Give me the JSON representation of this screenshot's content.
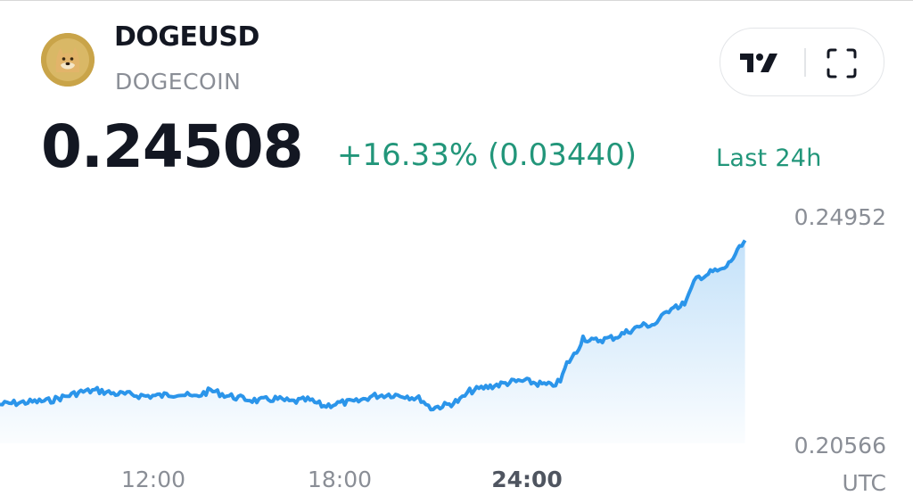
{
  "header": {
    "symbol": "DOGEUSD",
    "name": "DOGECOIN",
    "price": "0.24508",
    "change": "+16.33% (0.03440)",
    "period": "Last 24h"
  },
  "icons": {
    "logo": "dogecoin-logo-icon",
    "tradingview": "tradingview-logo-icon",
    "fullscreen": "fullscreen-icon"
  },
  "colors": {
    "line": "#2b95ea",
    "positive": "#22967a",
    "axis_text": "#8a8e96"
  },
  "chart_data": {
    "type": "area",
    "xlabel": "",
    "ylabel": "",
    "x_tick_labels": [
      "12:00",
      "18:00",
      "24:00"
    ],
    "x_tick_emphasized": "24:00",
    "x_unit_label": "UTC",
    "y_tick_labels": [
      "0.24952",
      "0.20566"
    ],
    "ylim": [
      0.20566,
      0.24952
    ],
    "grid": false,
    "series": [
      {
        "points": [
          [
            7.0,
            0.2131
          ],
          [
            7.5,
            0.2134
          ],
          [
            8.0,
            0.2136
          ],
          [
            8.5,
            0.2138
          ],
          [
            9.0,
            0.2146
          ],
          [
            9.5,
            0.2155
          ],
          [
            10.0,
            0.2158
          ],
          [
            10.5,
            0.2152
          ],
          [
            11.0,
            0.215
          ],
          [
            11.5,
            0.2147
          ],
          [
            12.0,
            0.2148
          ],
          [
            12.5,
            0.2152
          ],
          [
            13.0,
            0.2145
          ],
          [
            13.5,
            0.2158
          ],
          [
            14.0,
            0.2148
          ],
          [
            14.5,
            0.2142
          ],
          [
            15.0,
            0.2138
          ],
          [
            15.5,
            0.2142
          ],
          [
            16.0,
            0.2136
          ],
          [
            16.5,
            0.214
          ],
          [
            17.0,
            0.2128
          ],
          [
            17.5,
            0.2134
          ],
          [
            18.0,
            0.2136
          ],
          [
            18.5,
            0.2147
          ],
          [
            19.0,
            0.215
          ],
          [
            19.5,
            0.2148
          ],
          [
            20.0,
            0.2141
          ],
          [
            20.3,
            0.2124
          ],
          [
            20.8,
            0.213
          ],
          [
            21.2,
            0.2139
          ],
          [
            21.5,
            0.2156
          ],
          [
            22.0,
            0.2164
          ],
          [
            22.4,
            0.2169
          ],
          [
            22.8,
            0.2174
          ],
          [
            23.2,
            0.2176
          ],
          [
            23.6,
            0.2171
          ],
          [
            24.0,
            0.2167
          ],
          [
            24.3,
            0.2175
          ],
          [
            24.5,
            0.2209
          ],
          [
            24.8,
            0.2231
          ],
          [
            25.0,
            0.226
          ],
          [
            25.2,
            0.2252
          ],
          [
            25.6,
            0.2255
          ],
          [
            26.0,
            0.226
          ],
          [
            26.4,
            0.2271
          ],
          [
            26.8,
            0.2282
          ],
          [
            27.2,
            0.2284
          ],
          [
            27.5,
            0.2302
          ],
          [
            27.8,
            0.2322
          ],
          [
            28.0,
            0.2317
          ],
          [
            28.2,
            0.2331
          ],
          [
            28.5,
            0.2373
          ],
          [
            28.8,
            0.2379
          ],
          [
            29.0,
            0.2385
          ],
          [
            29.3,
            0.2388
          ],
          [
            29.5,
            0.24
          ],
          [
            29.7,
            0.2418
          ],
          [
            29.9,
            0.2434
          ],
          [
            30.0,
            0.2445
          ]
        ]
      }
    ]
  }
}
